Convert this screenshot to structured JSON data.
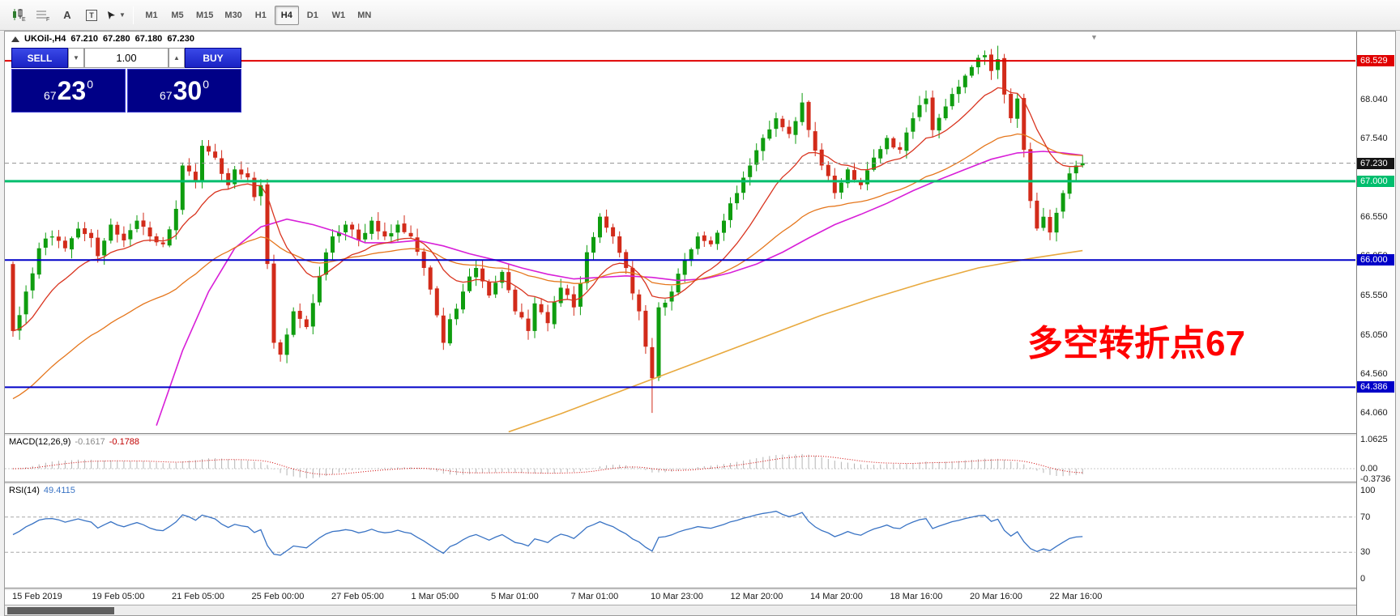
{
  "toolbar": {
    "timeframes": [
      "M1",
      "M5",
      "M15",
      "M30",
      "H1",
      "H4",
      "D1",
      "W1",
      "MN"
    ],
    "active_timeframe": "H4",
    "fib_letter": "F",
    "channel_letter": "E",
    "text_letter": "A",
    "label_letter": "T"
  },
  "chart": {
    "title_symbol": "UKOil-,H4",
    "ohlc": {
      "open": "67.210",
      "high": "67.280",
      "low": "67.180",
      "close": "67.230"
    }
  },
  "trade_panel": {
    "sell_label": "SELL",
    "buy_label": "BUY",
    "volume": "1.00",
    "bid": {
      "prefix": "67",
      "main": "23",
      "sup": "0"
    },
    "ask": {
      "prefix": "67",
      "main": "30",
      "sup": "0"
    }
  },
  "annotation": {
    "text": "多空转折点67",
    "color": "#ff0000"
  },
  "price_axis": {
    "ticks": [
      "68.040",
      "67.540",
      "66.550",
      "66.050",
      "65.550",
      "65.050",
      "64.560",
      "64.060"
    ],
    "levels": [
      {
        "label": "68.529",
        "price": 68.529,
        "bg": "#e00000",
        "line_color": "#e00000",
        "line_width": 2,
        "dashed": false
      },
      {
        "label": "67.230",
        "price": 67.23,
        "bg": "#151515",
        "line_color": "#909090",
        "line_width": 1,
        "dashed": true
      },
      {
        "label": "67.000",
        "price": 67.0,
        "bg": "#00be6e",
        "line_color": "#00be6e",
        "line_width": 3,
        "dashed": false
      },
      {
        "label": "66.000",
        "price": 66.0,
        "bg": "#0000c8",
        "line_color": "#0000c8",
        "line_width": 2,
        "dashed": false
      },
      {
        "label": "64.386",
        "price": 64.386,
        "bg": "#0000c8",
        "line_color": "#0000c8",
        "line_width": 2,
        "dashed": false
      }
    ]
  },
  "macd": {
    "label": "MACD(12,26,9)",
    "value_main": "-0.1617",
    "value_signal": "-0.1788",
    "axis": [
      "1.0625",
      "0.00",
      "-0.3736"
    ]
  },
  "rsi": {
    "label": "RSI(14)",
    "value": "49.4115",
    "axis": [
      "100",
      "70",
      "30",
      "0"
    ],
    "levels": [
      70,
      30
    ]
  },
  "time_axis": [
    "15 Feb 2019",
    "19 Feb 05:00",
    "21 Feb 05:00",
    "25 Feb 00:00",
    "27 Feb 05:00",
    "1 Mar 05:00",
    "5 Mar 01:00",
    "7 Mar 01:00",
    "10 Mar 23:00",
    "12 Mar 20:00",
    "14 Mar 20:00",
    "18 Mar 16:00",
    "20 Mar 16:00",
    "22 Mar 16:00"
  ],
  "chart_series": {
    "bars": 165,
    "close_keyframes": [
      [
        0,
        65.1
      ],
      [
        2,
        65.6
      ],
      [
        4,
        66.15
      ],
      [
        6,
        66.3
      ],
      [
        8,
        66.15
      ],
      [
        10,
        66.4
      ],
      [
        12,
        66.28
      ],
      [
        13,
        66.05
      ],
      [
        15,
        66.45
      ],
      [
        17,
        66.25
      ],
      [
        19,
        66.5
      ],
      [
        21,
        66.3
      ],
      [
        23,
        66.2
      ],
      [
        25,
        66.65
      ],
      [
        26,
        67.2
      ],
      [
        28,
        67.0
      ],
      [
        29,
        67.45
      ],
      [
        31,
        67.3
      ],
      [
        33,
        66.95
      ],
      [
        34,
        67.15
      ],
      [
        36,
        67.05
      ],
      [
        37,
        66.8
      ],
      [
        38,
        66.95
      ],
      [
        39,
        65.95
      ],
      [
        40,
        64.95
      ],
      [
        41,
        64.8
      ],
      [
        43,
        65.35
      ],
      [
        45,
        65.15
      ],
      [
        47,
        65.8
      ],
      [
        49,
        66.3
      ],
      [
        51,
        66.45
      ],
      [
        53,
        66.25
      ],
      [
        55,
        66.5
      ],
      [
        57,
        66.3
      ],
      [
        59,
        66.45
      ],
      [
        61,
        66.3
      ],
      [
        63,
        65.9
      ],
      [
        65,
        65.3
      ],
      [
        66,
        64.95
      ],
      [
        67,
        65.25
      ],
      [
        69,
        65.6
      ],
      [
        71,
        65.9
      ],
      [
        73,
        65.55
      ],
      [
        75,
        65.85
      ],
      [
        77,
        65.35
      ],
      [
        79,
        65.1
      ],
      [
        80,
        65.45
      ],
      [
        82,
        65.2
      ],
      [
        84,
        65.65
      ],
      [
        86,
        65.4
      ],
      [
        88,
        66.1
      ],
      [
        90,
        66.55
      ],
      [
        92,
        66.3
      ],
      [
        94,
        65.9
      ],
      [
        96,
        65.35
      ],
      [
        97,
        64.9
      ],
      [
        98,
        64.5
      ],
      [
        99,
        65.4
      ],
      [
        101,
        65.6
      ],
      [
        103,
        66.0
      ],
      [
        105,
        66.3
      ],
      [
        107,
        66.2
      ],
      [
        109,
        66.5
      ],
      [
        111,
        66.85
      ],
      [
        113,
        67.2
      ],
      [
        115,
        67.55
      ],
      [
        117,
        67.8
      ],
      [
        119,
        67.6
      ],
      [
        121,
        68.0
      ],
      [
        122,
        67.65
      ],
      [
        124,
        67.2
      ],
      [
        126,
        66.85
      ],
      [
        128,
        67.15
      ],
      [
        130,
        66.95
      ],
      [
        132,
        67.3
      ],
      [
        134,
        67.55
      ],
      [
        136,
        67.4
      ],
      [
        138,
        67.8
      ],
      [
        140,
        68.05
      ],
      [
        141,
        67.65
      ],
      [
        143,
        67.95
      ],
      [
        145,
        68.2
      ],
      [
        147,
        68.45
      ],
      [
        149,
        68.6
      ],
      [
        150,
        68.4
      ],
      [
        151,
        68.55
      ],
      [
        152,
        68.1
      ],
      [
        153,
        67.8
      ],
      [
        154,
        68.05
      ],
      [
        155,
        67.4
      ],
      [
        156,
        66.75
      ],
      [
        157,
        66.4
      ],
      [
        158,
        66.55
      ],
      [
        159,
        66.35
      ],
      [
        160,
        66.6
      ],
      [
        161,
        66.85
      ],
      [
        162,
        67.1
      ],
      [
        163,
        67.2
      ],
      [
        164,
        67.23
      ]
    ],
    "wick_overrides": {
      "98": {
        "low": 64.06
      },
      "121": {
        "high": 68.12
      },
      "149": {
        "high": 68.66
      },
      "151": {
        "high": 68.72
      }
    },
    "magenta_ma": [
      [
        22,
        63.9
      ],
      [
        26,
        64.85
      ],
      [
        30,
        65.6
      ],
      [
        34,
        66.15
      ],
      [
        38,
        66.42
      ],
      [
        42,
        66.52
      ],
      [
        46,
        66.45
      ],
      [
        50,
        66.35
      ],
      [
        54,
        66.22
      ],
      [
        58,
        66.22
      ],
      [
        62,
        66.25
      ],
      [
        66,
        66.18
      ],
      [
        70,
        66.08
      ],
      [
        74,
        66.0
      ],
      [
        78,
        65.9
      ],
      [
        82,
        65.82
      ],
      [
        86,
        65.76
      ],
      [
        90,
        65.78
      ],
      [
        94,
        65.8
      ],
      [
        98,
        65.78
      ],
      [
        102,
        65.74
      ],
      [
        106,
        65.76
      ],
      [
        110,
        65.84
      ],
      [
        114,
        65.95
      ],
      [
        118,
        66.1
      ],
      [
        122,
        66.28
      ],
      [
        126,
        66.45
      ],
      [
        130,
        66.58
      ],
      [
        134,
        66.72
      ],
      [
        138,
        66.88
      ],
      [
        142,
        67.02
      ],
      [
        146,
        67.15
      ],
      [
        150,
        67.28
      ],
      [
        154,
        67.36
      ],
      [
        158,
        67.38
      ],
      [
        161,
        67.36
      ],
      [
        164,
        67.33
      ]
    ],
    "gold_ma": [
      [
        76,
        63.82
      ],
      [
        84,
        64.05
      ],
      [
        92,
        64.3
      ],
      [
        100,
        64.55
      ],
      [
        108,
        64.8
      ],
      [
        116,
        65.05
      ],
      [
        124,
        65.3
      ],
      [
        132,
        65.52
      ],
      [
        140,
        65.72
      ],
      [
        148,
        65.9
      ],
      [
        156,
        66.02
      ],
      [
        164,
        66.12
      ]
    ],
    "colors": {
      "up": "#0f9d0f",
      "down": "#d22b1a",
      "fast_ma": "#d9341f",
      "med_ma": "#e5761c",
      "magenta_ma": "#d81fd8",
      "gold_ma": "#e8a93e",
      "rsi": "#3973c4",
      "rsi_level": "#a8a8a8",
      "macd_bar": "#b4b4b4",
      "macd_signal": "#d00000",
      "current_dash": "#909090"
    }
  }
}
